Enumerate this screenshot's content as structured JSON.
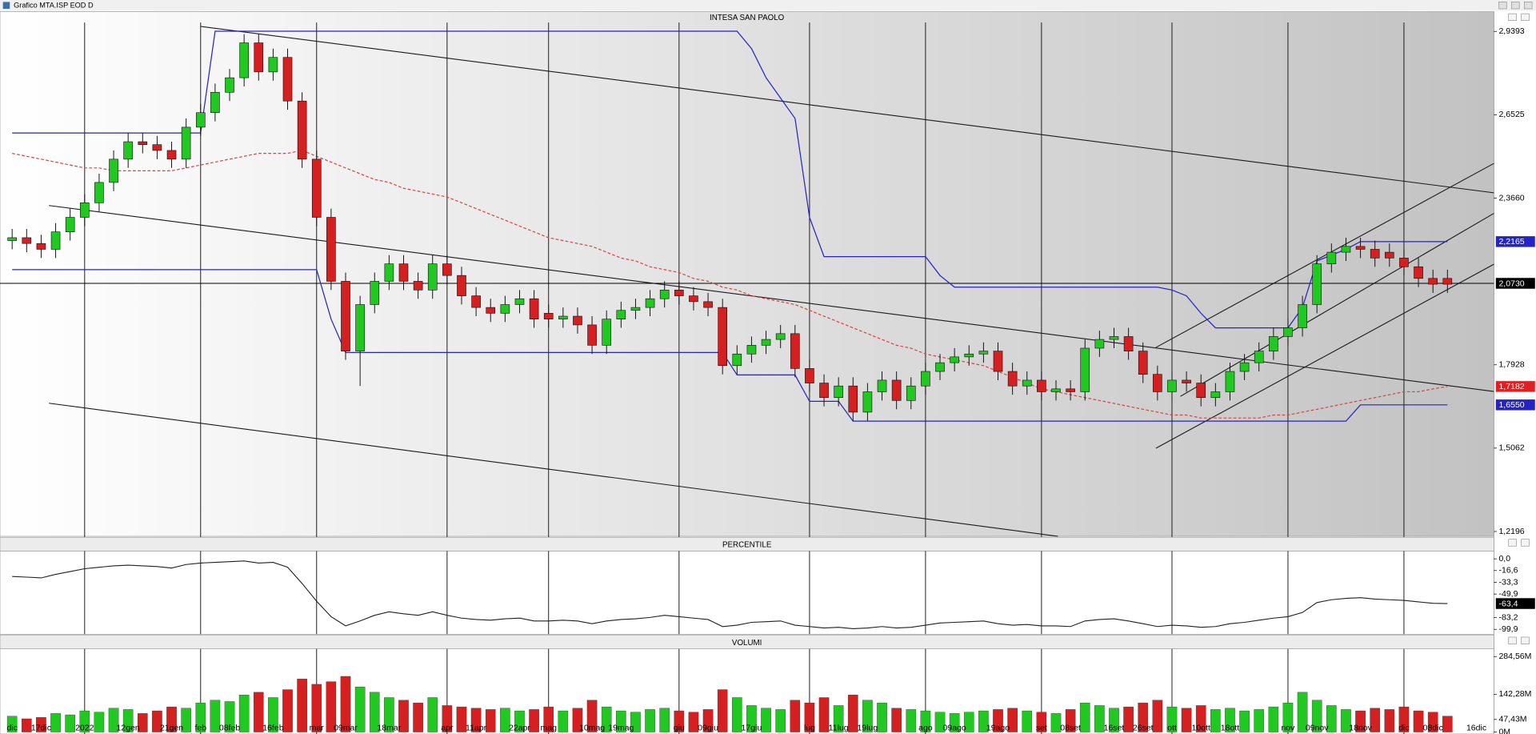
{
  "window_title": "Grafico MTA.ISP EOD D",
  "chart_data": [
    {
      "type": "candlestick",
      "title": "INTESA SAN PAOLO",
      "up_color": "#22c822",
      "down_color": "#d42020",
      "open": [
        2.22,
        2.23,
        2.21,
        2.19,
        2.25,
        2.3,
        2.35,
        2.42,
        2.5,
        2.56,
        2.55,
        2.53,
        2.5,
        2.61,
        2.66,
        2.73,
        2.78,
        2.9,
        2.8,
        2.85,
        2.7,
        2.5,
        2.3,
        2.08,
        1.84,
        2.0,
        2.08,
        2.14,
        2.08,
        2.05,
        2.14,
        2.1,
        2.03,
        1.99,
        1.97,
        2.0,
        2.02,
        1.97,
        1.95,
        1.96,
        1.93,
        1.86,
        1.95,
        1.98,
        1.99,
        2.02,
        2.05,
        2.03,
        2.01,
        1.99,
        1.79,
        1.83,
        1.86,
        1.88,
        1.9,
        1.78,
        1.73,
        1.68,
        1.72,
        1.63,
        1.7,
        1.74,
        1.67,
        1.72,
        1.77,
        1.8,
        1.82,
        1.83,
        1.84,
        1.77,
        1.72,
        1.74,
        1.7,
        1.71,
        1.7,
        1.85,
        1.88,
        1.89,
        1.84,
        1.76,
        1.7,
        1.74,
        1.73,
        1.68,
        1.7,
        1.77,
        1.8,
        1.84,
        1.89,
        1.92,
        2.0,
        2.14,
        2.18,
        2.2,
        2.19,
        2.18,
        2.16,
        2.13,
        2.09,
        2.09,
        null,
        null
      ],
      "high": [
        2.26,
        2.26,
        2.24,
        2.28,
        2.33,
        2.38,
        2.45,
        2.53,
        2.59,
        2.59,
        2.58,
        2.56,
        2.64,
        2.69,
        2.76,
        2.81,
        2.93,
        2.93,
        2.88,
        2.88,
        2.73,
        2.53,
        2.33,
        2.11,
        2.03,
        2.11,
        2.17,
        2.17,
        2.11,
        2.17,
        2.17,
        2.13,
        2.06,
        2.02,
        2.03,
        2.05,
        2.05,
        2.0,
        1.99,
        1.99,
        1.96,
        1.98,
        2.01,
        2.02,
        2.05,
        2.08,
        2.08,
        2.06,
        2.04,
        2.02,
        1.86,
        1.89,
        1.91,
        1.93,
        1.93,
        1.81,
        1.76,
        1.75,
        1.75,
        1.73,
        1.77,
        1.77,
        1.75,
        1.8,
        1.83,
        1.85,
        1.86,
        1.87,
        1.87,
        1.8,
        1.77,
        1.77,
        1.74,
        1.74,
        1.88,
        1.91,
        1.92,
        1.92,
        1.87,
        1.79,
        1.77,
        1.77,
        1.76,
        1.73,
        1.8,
        1.83,
        1.87,
        1.92,
        1.95,
        2.03,
        2.17,
        2.21,
        2.23,
        2.23,
        2.22,
        2.21,
        2.19,
        2.16,
        2.12,
        2.12,
        null,
        null
      ],
      "low": [
        2.19,
        2.18,
        2.16,
        2.16,
        2.22,
        2.27,
        2.32,
        2.39,
        2.47,
        2.52,
        2.5,
        2.47,
        2.47,
        2.58,
        2.63,
        2.7,
        2.75,
        2.77,
        2.77,
        2.67,
        2.47,
        2.27,
        2.05,
        1.81,
        1.72,
        1.97,
        2.05,
        2.05,
        2.02,
        2.02,
        2.07,
        2.0,
        1.96,
        1.94,
        1.94,
        1.97,
        1.92,
        1.92,
        1.92,
        1.9,
        1.83,
        1.83,
        1.92,
        1.95,
        1.96,
        1.99,
        2.0,
        1.98,
        1.96,
        1.76,
        1.76,
        1.8,
        1.83,
        1.85,
        1.75,
        1.7,
        1.65,
        1.65,
        1.6,
        1.6,
        1.67,
        1.64,
        1.64,
        1.69,
        1.74,
        1.77,
        1.79,
        1.8,
        1.74,
        1.69,
        1.69,
        1.67,
        1.67,
        1.67,
        1.67,
        1.82,
        1.85,
        1.81,
        1.73,
        1.67,
        1.67,
        1.7,
        1.65,
        1.65,
        1.67,
        1.74,
        1.77,
        1.81,
        1.86,
        1.89,
        1.97,
        2.11,
        2.15,
        2.16,
        2.13,
        2.13,
        2.1,
        2.06,
        2.04,
        2.04,
        null,
        null
      ],
      "close": [
        2.23,
        2.21,
        2.19,
        2.25,
        2.3,
        2.35,
        2.42,
        2.5,
        2.56,
        2.55,
        2.53,
        2.5,
        2.61,
        2.66,
        2.73,
        2.78,
        2.9,
        2.8,
        2.85,
        2.7,
        2.5,
        2.3,
        2.08,
        1.84,
        2.0,
        2.08,
        2.14,
        2.08,
        2.05,
        2.14,
        2.1,
        2.03,
        1.99,
        1.97,
        2.0,
        2.02,
        1.95,
        1.95,
        1.96,
        1.93,
        1.86,
        1.95,
        1.98,
        1.99,
        2.02,
        2.05,
        2.03,
        2.01,
        1.99,
        1.79,
        1.83,
        1.86,
        1.88,
        1.9,
        1.78,
        1.73,
        1.68,
        1.72,
        1.63,
        1.7,
        1.74,
        1.67,
        1.72,
        1.77,
        1.8,
        1.82,
        1.83,
        1.84,
        1.77,
        1.72,
        1.74,
        1.7,
        1.71,
        1.7,
        1.85,
        1.88,
        1.89,
        1.84,
        1.76,
        1.7,
        1.74,
        1.73,
        1.68,
        1.7,
        1.77,
        1.8,
        1.84,
        1.89,
        1.92,
        2.0,
        2.14,
        2.18,
        2.2,
        2.19,
        2.16,
        2.16,
        2.13,
        2.09,
        2.07,
        2.07,
        null,
        null
      ],
      "overlays": [
        {
          "color": "#2323c8",
          "values": [
            2.59,
            2.59,
            2.59,
            2.59,
            2.59,
            2.59,
            2.59,
            2.59,
            2.59,
            2.59,
            2.59,
            2.59,
            2.59,
            2.59,
            2.94,
            2.94,
            2.94,
            2.94,
            2.94,
            2.94,
            2.94,
            2.94,
            2.94,
            2.94,
            2.94,
            2.94,
            2.94,
            2.94,
            2.94,
            2.94,
            2.94,
            2.94,
            2.94,
            2.94,
            2.94,
            2.94,
            2.94,
            2.94,
            2.94,
            2.94,
            2.94,
            2.94,
            2.94,
            2.94,
            2.94,
            2.94,
            2.94,
            2.94,
            2.94,
            2.94,
            2.94,
            2.88,
            2.78,
            2.71,
            2.64,
            2.3,
            2.165,
            2.165,
            2.165,
            2.165,
            2.165,
            2.165,
            2.165,
            2.165,
            2.1,
            2.06,
            2.06,
            2.06,
            2.06,
            2.06,
            2.06,
            2.06,
            2.06,
            2.06,
            2.06,
            2.06,
            2.06,
            2.06,
            2.06,
            2.06,
            2.05,
            2.03,
            1.97,
            1.92,
            1.92,
            1.92,
            1.92,
            1.92,
            1.92,
            1.99,
            2.15,
            2.17,
            2.19,
            2.2165,
            2.2165,
            2.2165,
            2.2165,
            2.2165,
            2.2165,
            2.2165,
            null,
            null
          ]
        },
        {
          "color": "#2323c8",
          "values": [
            2.12,
            2.12,
            2.12,
            2.12,
            2.12,
            2.12,
            2.12,
            2.12,
            2.12,
            2.12,
            2.12,
            2.12,
            2.12,
            2.12,
            2.12,
            2.12,
            2.12,
            2.12,
            2.12,
            2.12,
            2.12,
            2.12,
            1.95,
            1.835,
            1.835,
            1.835,
            1.835,
            1.835,
            1.835,
            1.835,
            1.835,
            1.835,
            1.835,
            1.835,
            1.835,
            1.835,
            1.835,
            1.835,
            1.835,
            1.835,
            1.835,
            1.835,
            1.835,
            1.835,
            1.835,
            1.835,
            1.835,
            1.835,
            1.835,
            1.835,
            1.758,
            1.758,
            1.758,
            1.758,
            1.758,
            1.667,
            1.667,
            1.667,
            1.599,
            1.599,
            1.599,
            1.599,
            1.599,
            1.599,
            1.599,
            1.599,
            1.599,
            1.599,
            1.599,
            1.599,
            1.599,
            1.599,
            1.599,
            1.599,
            1.599,
            1.599,
            1.599,
            1.599,
            1.599,
            1.599,
            1.599,
            1.599,
            1.599,
            1.599,
            1.599,
            1.599,
            1.599,
            1.599,
            1.599,
            1.599,
            1.599,
            1.599,
            1.599,
            1.655,
            1.655,
            1.655,
            1.655,
            1.655,
            1.655,
            1.655,
            null,
            null
          ]
        },
        {
          "color": "#e04040",
          "dashed": true,
          "values": [
            2.52,
            2.51,
            2.5,
            2.49,
            2.48,
            2.47,
            2.47,
            2.46,
            2.46,
            2.46,
            2.46,
            2.46,
            2.47,
            2.48,
            2.49,
            2.5,
            2.51,
            2.52,
            2.52,
            2.52,
            2.53,
            2.51,
            2.49,
            2.47,
            2.45,
            2.43,
            2.42,
            2.4,
            2.39,
            2.38,
            2.37,
            2.35,
            2.33,
            2.31,
            2.29,
            2.27,
            2.25,
            2.23,
            2.22,
            2.21,
            2.2,
            2.18,
            2.16,
            2.15,
            2.13,
            2.12,
            2.11,
            2.09,
            2.08,
            2.06,
            2.05,
            2.03,
            2.02,
            2.01,
            2.0,
            1.98,
            1.96,
            1.94,
            1.92,
            1.9,
            1.88,
            1.86,
            1.85,
            1.83,
            1.82,
            1.81,
            1.8,
            1.79,
            1.77,
            1.75,
            1.73,
            1.71,
            1.7,
            1.69,
            1.68,
            1.67,
            1.66,
            1.65,
            1.64,
            1.63,
            1.62,
            1.62,
            1.61,
            1.61,
            1.61,
            1.61,
            1.61,
            1.62,
            1.62,
            1.63,
            1.64,
            1.65,
            1.66,
            1.67,
            1.68,
            1.69,
            1.7,
            1.7,
            1.71,
            1.7182,
            null,
            null
          ]
        }
      ],
      "ylim": [
        1.203,
        3.007
      ],
      "yticks": [
        {
          "value": 2.9393,
          "label": "2,9393"
        },
        {
          "value": 2.6525,
          "label": "2,6525"
        },
        {
          "value": 2.366,
          "label": "2,3660"
        },
        {
          "value": 1.7928,
          "label": "1,7928"
        },
        {
          "value": 1.5062,
          "label": "1,5062"
        },
        {
          "value": 1.2196,
          "label": "1,2196"
        }
      ],
      "markers": [
        {
          "value": 2.2165,
          "label": "2,2165",
          "color": "#2323c8"
        },
        {
          "value": 2.073,
          "label": "2,0730",
          "color": "#000000",
          "line": true
        },
        {
          "value": 1.7182,
          "label": "1,7182",
          "color": "#e02020"
        },
        {
          "value": 1.655,
          "label": "1,6550",
          "color": "#2323c8"
        }
      ]
    },
    {
      "type": "line",
      "title": "PERCENTILE",
      "color": "#202020",
      "values": [
        -25,
        -26,
        -27,
        -22,
        -18,
        -14,
        -12,
        -10,
        -9,
        -10,
        -11,
        -13,
        -8,
        -6,
        -5,
        -4,
        -3,
        -6,
        -5,
        -12,
        -35,
        -60,
        -82,
        -95,
        -88,
        -80,
        -75,
        -78,
        -80,
        -75,
        -80,
        -84,
        -86,
        -87,
        -85,
        -84,
        -88,
        -88,
        -87,
        -88,
        -92,
        -88,
        -86,
        -85,
        -83,
        -80,
        -82,
        -84,
        -86,
        -96,
        -94,
        -90,
        -89,
        -88,
        -94,
        -96,
        -98,
        -97,
        -99,
        -98,
        -96,
        -98,
        -97,
        -94,
        -91,
        -90,
        -89,
        -88,
        -92,
        -94,
        -93,
        -95,
        -95,
        -96,
        -88,
        -86,
        -85,
        -88,
        -92,
        -96,
        -94,
        -95,
        -97,
        -96,
        -92,
        -90,
        -87,
        -84,
        -82,
        -76,
        -62,
        -58,
        -56,
        -55,
        -57,
        -58,
        -59,
        -61,
        -63,
        -63.4,
        null,
        null
      ],
      "ylim": [
        -104,
        8.3
      ],
      "yticks": [
        {
          "value": 0,
          "label": "0,0"
        },
        {
          "value": -16.6,
          "label": "-16,6"
        },
        {
          "value": -33.3,
          "label": "-33,3"
        },
        {
          "value": -49.9,
          "label": "-49,9"
        },
        {
          "value": -83.2,
          "label": "-83,2"
        },
        {
          "value": -99.9,
          "label": "-99,9"
        }
      ],
      "markers": [
        {
          "value": -63.4,
          "label": "-63,4",
          "color": "#000000"
        }
      ]
    },
    {
      "type": "bar",
      "title": "VOLUMI",
      "up_color": "#22c822",
      "down_color": "#d42020",
      "categories": [
        "dic",
        null,
        "17dic",
        null,
        null,
        "2022",
        null,
        null,
        "12gen",
        null,
        null,
        "21gen",
        null,
        "feb",
        null,
        "08feb",
        null,
        null,
        "16feb",
        null,
        null,
        "mar",
        null,
        "09mar",
        null,
        null,
        "18mar",
        null,
        null,
        null,
        "apr",
        null,
        "11apr",
        null,
        null,
        "22apr",
        null,
        "mag",
        null,
        null,
        "10mag",
        null,
        "19mag",
        null,
        null,
        null,
        "giu",
        null,
        "09giu",
        null,
        null,
        "17giu",
        null,
        null,
        null,
        "lug",
        null,
        "11lug",
        null,
        "19lug",
        null,
        null,
        null,
        "ago",
        null,
        "09ago",
        null,
        null,
        "19ago",
        null,
        null,
        "set",
        null,
        "08set",
        null,
        null,
        "16set",
        null,
        "26set",
        null,
        "ott",
        null,
        "10ott",
        null,
        "18ott",
        null,
        null,
        null,
        "nov",
        null,
        "09nov",
        null,
        null,
        "18nov",
        null,
        null,
        "dic",
        null,
        "08dic",
        null,
        null,
        "16dic"
      ],
      "values": [
        60,
        50,
        55,
        70,
        65,
        80,
        75,
        90,
        85,
        70,
        80,
        95,
        90,
        110,
        120,
        115,
        140,
        150,
        130,
        160,
        200,
        180,
        190,
        210,
        170,
        150,
        130,
        120,
        110,
        130,
        100,
        95,
        90,
        85,
        90,
        80,
        85,
        95,
        80,
        90,
        120,
        95,
        80,
        75,
        85,
        90,
        80,
        75,
        85,
        160,
        130,
        100,
        90,
        85,
        120,
        110,
        130,
        100,
        140,
        120,
        110,
        90,
        85,
        80,
        75,
        70,
        75,
        80,
        85,
        90,
        80,
        75,
        70,
        85,
        110,
        100,
        90,
        95,
        110,
        120,
        95,
        90,
        100,
        85,
        90,
        80,
        85,
        95,
        110,
        150,
        120,
        100,
        85,
        80,
        90,
        85,
        95,
        80,
        75,
        60,
        null,
        null
      ],
      "ylim": [
        0,
        310
      ],
      "yticks": [
        {
          "value": 0,
          "label": "0M"
        },
        {
          "value": 47.43,
          "label": "47,43M"
        },
        {
          "value": 142.28,
          "label": "142,28M"
        },
        {
          "value": 284.56,
          "label": "284,56M"
        }
      ]
    }
  ],
  "grid": true
}
